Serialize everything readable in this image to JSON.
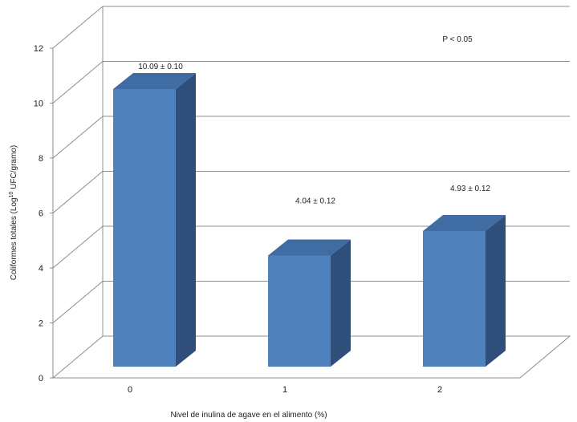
{
  "chart_data": {
    "type": "bar",
    "categories": [
      "0",
      "1",
      "2"
    ],
    "values": [
      10.09,
      4.04,
      4.93
    ],
    "data_labels": [
      "10.09 ± 0.10",
      "4.04 ± 0.12",
      "4.93 ± 0.12"
    ],
    "annotation": "P < 0.05",
    "xlabel": "Nivel de inulina de agave en el alimento (%)",
    "ylabel_parts": {
      "before": "Coliformes totales  (Log",
      "sup": "10",
      "after": " UFC/gramo)"
    },
    "ylim": [
      0,
      12
    ],
    "yticks": [
      0,
      2,
      4,
      6,
      8,
      10,
      12
    ],
    "grid": true,
    "colors": {
      "bar_front": "#4f81bd",
      "bar_top": "#3f6da3",
      "bar_side": "#2f4f7a",
      "grid": "#8c8c8c"
    }
  }
}
